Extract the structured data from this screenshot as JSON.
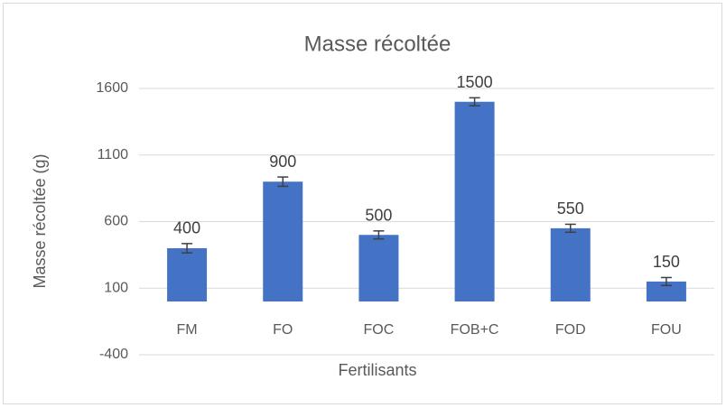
{
  "chart_data": {
    "type": "bar",
    "title": "Masse récoltée",
    "xlabel": "Fertilisants",
    "ylabel": "Masse récoltée (g)",
    "categories": [
      "FM",
      "FO",
      "FOC",
      "FOB+C",
      "FOD",
      "FOU"
    ],
    "values": [
      400,
      900,
      500,
      1500,
      550,
      150
    ],
    "errors": [
      35,
      35,
      30,
      30,
      30,
      30
    ],
    "color": "#4472c4",
    "ylim": [
      -400,
      1600
    ],
    "yticks": [
      -400,
      100,
      600,
      1100,
      1600
    ],
    "grid": true
  }
}
